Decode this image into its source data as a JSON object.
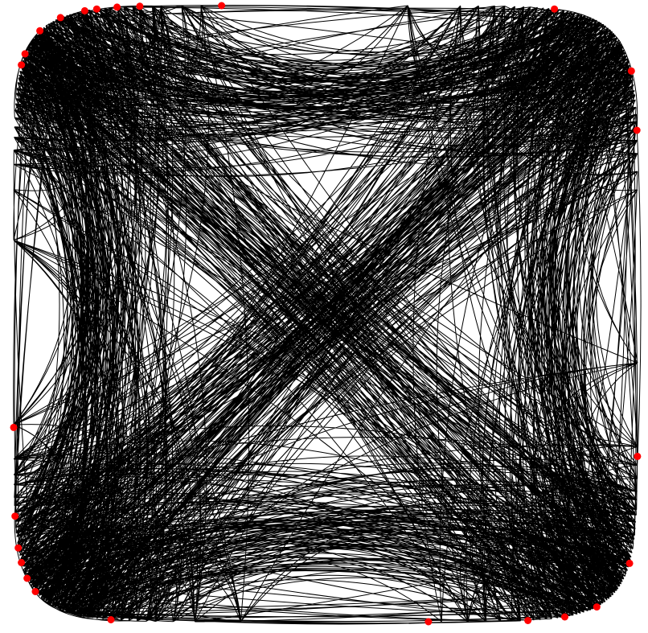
{
  "graph": {
    "layout": "circular",
    "node_count": 240,
    "edge_count": 1300,
    "visible_node_marker_count": 25,
    "curved_edges": true,
    "colors": {
      "background": "#ffffff",
      "edge": "#000000",
      "node": "#ff0000"
    }
  }
}
